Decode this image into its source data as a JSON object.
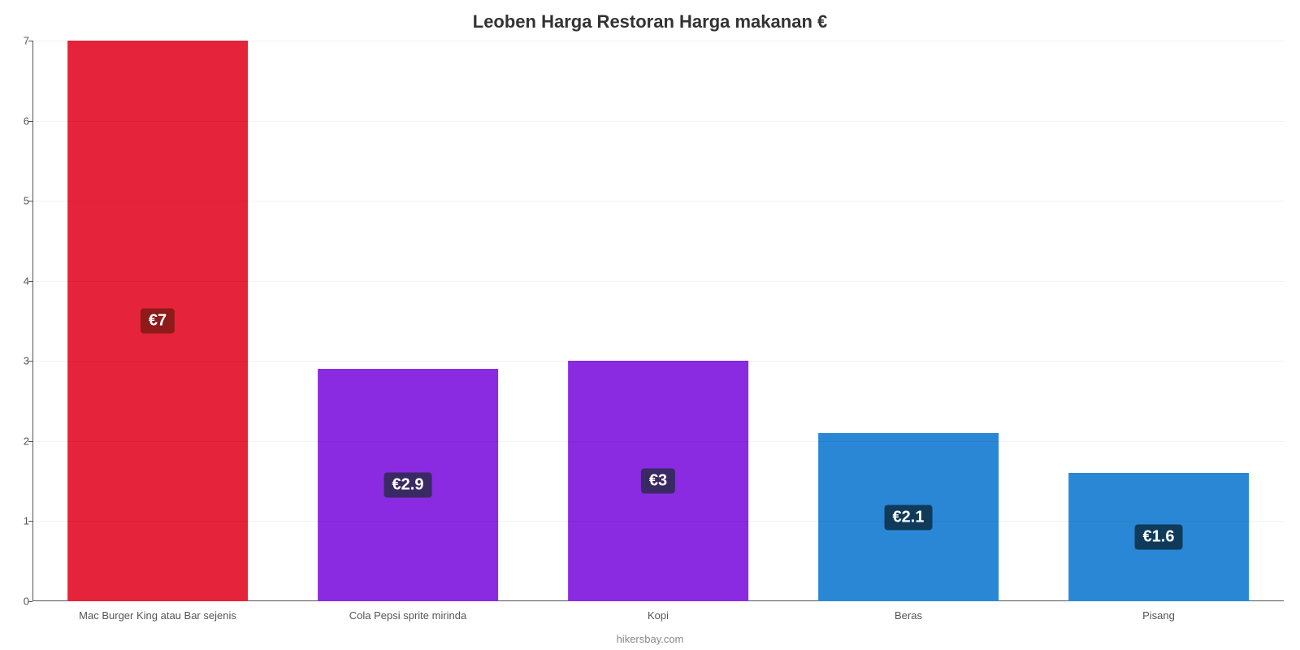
{
  "chart": {
    "type": "bar",
    "title": "Leoben Harga Restoran Harga makanan €",
    "title_fontsize": 22,
    "title_color": "#333333",
    "caption": "hikersbay.com",
    "caption_fontsize": 13,
    "caption_color": "#888888",
    "background_color": "#ffffff",
    "grid_color": "rgba(0,0,0,0.05)",
    "axis_color": "#555555",
    "ylim": [
      0,
      7
    ],
    "ytick_step": 1,
    "ytick_fontsize": 13,
    "xtick_fontsize": 13,
    "value_label_fontsize": 20,
    "bar_width_pct": 72,
    "categories": [
      "Mac Burger King atau Bar sejenis",
      "Cola Pepsi sprite mirinda",
      "Kopi",
      "Beras",
      "Pisang"
    ],
    "values": [
      7,
      2.9,
      3,
      2.1,
      1.6
    ],
    "value_labels": [
      "€7",
      "€2.9",
      "€3",
      "€2.1",
      "€1.6"
    ],
    "bar_colors": [
      "#e5243b",
      "#8a2be2",
      "#8a2be2",
      "#2a87d6",
      "#2a87d6"
    ],
    "badge_colors": [
      "#8e1a1a",
      "#3a2a63",
      "#3a2a63",
      "#0f3a5a",
      "#0f3a5a"
    ]
  }
}
